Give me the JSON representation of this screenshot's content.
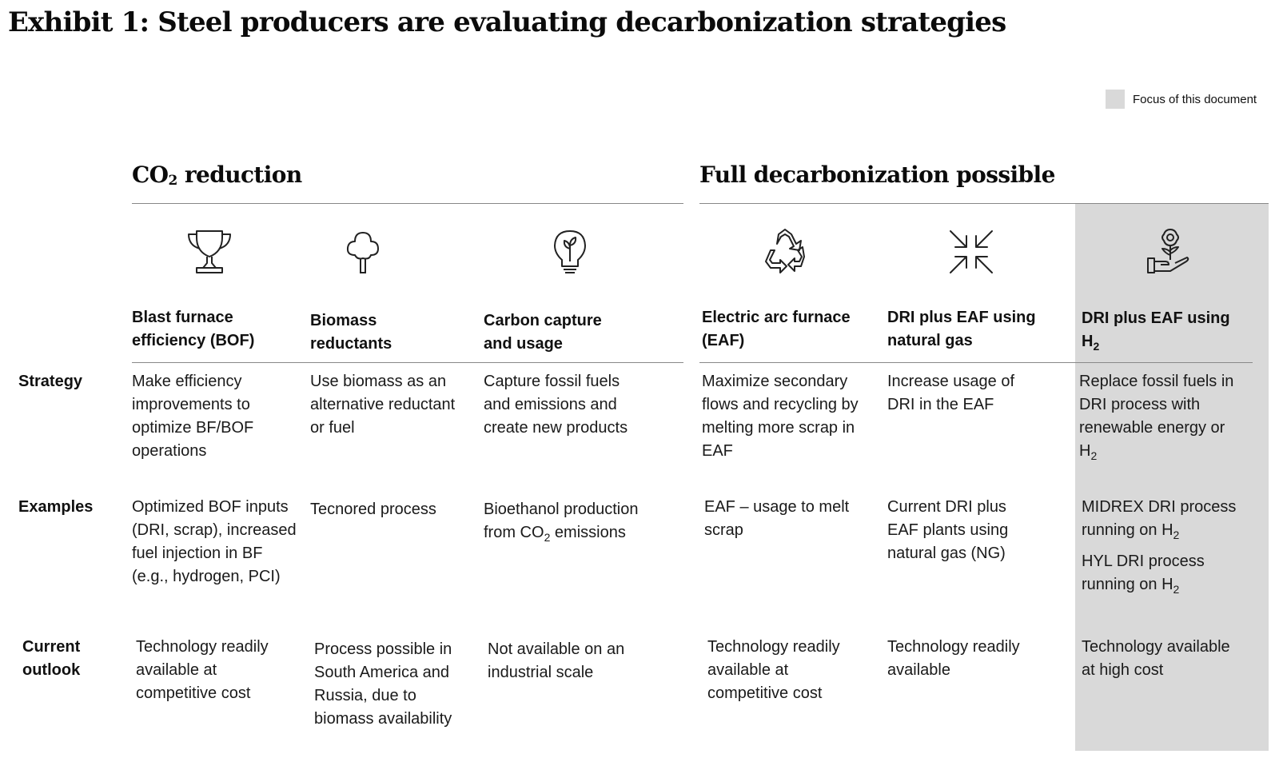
{
  "title": "Exhibit 1: Steel producers are evaluating decarbonization strategies",
  "legend": {
    "label": "Focus of this document",
    "swatch_color": "#d9d9d9"
  },
  "sections": {
    "co2_reduction": {
      "prefix": "CO",
      "sub": "2",
      "suffix": " reduction"
    },
    "full_decarbonization": {
      "label": "Full decarbonization possible"
    }
  },
  "row_labels": {
    "strategy": "Strategy",
    "examples": "Examples",
    "outlook_1": "Current",
    "outlook_2": "outlook"
  },
  "columns": [
    {
      "icon": "trophy-icon",
      "heading_1": "Blast furnace",
      "heading_2": "efficiency (BOF)",
      "strategy": [
        "Make efficiency",
        "improvements to",
        "optimize BF/BOF",
        "operations"
      ],
      "examples": [
        "Optimized BOF inputs",
        "(DRI, scrap), increased",
        "fuel injection in BF",
        "(e.g., hydrogen, PCI)"
      ],
      "outlook": [
        "Technology readily",
        "available at",
        "competitive cost"
      ]
    },
    {
      "icon": "tree-icon",
      "heading_1": "Biomass",
      "heading_2": "reductants",
      "strategy": [
        "Use biomass as an",
        "alternative reductant",
        "or fuel"
      ],
      "examples": [
        "Tecnored process"
      ],
      "outlook": [
        "Process possible in",
        "South America and",
        "Russia, due to",
        "biomass availability"
      ]
    },
    {
      "icon": "lightbulb-icon",
      "heading_1": "Carbon capture",
      "heading_2": "and usage",
      "strategy": [
        "Capture fossil fuels",
        "and emissions and",
        "create new products"
      ],
      "examples": [
        "Bioethanol production",
        "from CO",
        "2",
        " emissions"
      ],
      "outlook": [
        "Not available on an",
        "industrial scale"
      ]
    },
    {
      "icon": "recycle-icon",
      "heading_1": "Electric arc furnace",
      "heading_2": "(EAF)",
      "strategy": [
        "Maximize secondary",
        "flows and recycling by",
        "melting more scrap in",
        "EAF"
      ],
      "examples": [
        "EAF – usage to melt",
        "scrap"
      ],
      "outlook": [
        "Technology readily",
        "available at",
        "competitive cost"
      ]
    },
    {
      "icon": "arrows-inward-icon",
      "heading_1": "DRI plus EAF using",
      "heading_2": "natural gas",
      "strategy": [
        "Increase usage of",
        "DRI in the EAF"
      ],
      "examples": [
        "Current DRI plus",
        "EAF plants using",
        "natural gas (NG)"
      ],
      "outlook": [
        "Technology readily",
        "available"
      ]
    },
    {
      "icon": "hand-flower-icon",
      "heading_1": "DRI plus EAF using",
      "heading_2": "H",
      "heading_2_sub": "2",
      "strategy": [
        "Replace fossil fuels in",
        "DRI process with",
        "renewable energy or",
        "H",
        "2"
      ],
      "examples_1": [
        "MIDREX DRI process",
        "running on H",
        "2"
      ],
      "examples_2": [
        "HYL DRI process",
        "running on H",
        "2"
      ],
      "outlook": [
        "Technology available",
        "at high cost"
      ]
    }
  ]
}
